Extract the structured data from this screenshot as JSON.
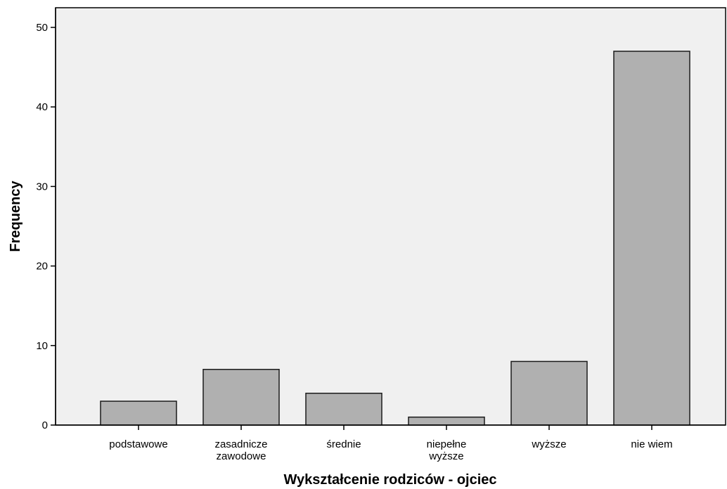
{
  "chart_data": {
    "type": "bar",
    "title": "",
    "xlabel": "Wykształcenie rodziców - ojciec",
    "ylabel": "Frequency",
    "ylim": [
      0,
      52
    ],
    "yticks": [
      0,
      10,
      20,
      30,
      40,
      50
    ],
    "grid": false,
    "categories": [
      [
        "podstawowe"
      ],
      [
        "zasadnicze",
        "zawodowe"
      ],
      [
        "średnie"
      ],
      [
        "niepełne",
        "wyższe"
      ],
      [
        "wyższe"
      ],
      [
        "nie wiem"
      ]
    ],
    "values": [
      3,
      7,
      4,
      1,
      8,
      47
    ],
    "colors": {
      "bar_fill": "#b0b0b0",
      "bar_stroke": "#1a1a1a",
      "plot_background": "#f0f0f0",
      "axis": "#000000"
    }
  }
}
